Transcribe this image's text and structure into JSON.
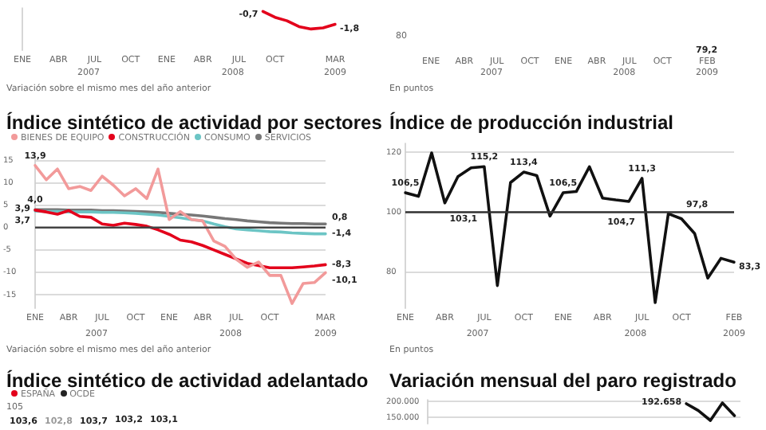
{
  "chart_data": [
    {
      "type": "line",
      "categories": [
        "ENE",
        null,
        null,
        "ABR",
        null,
        null,
        "JUL",
        null,
        null,
        "OCT",
        null,
        null,
        "ENE",
        null,
        null,
        "ABR",
        null,
        null,
        "JUL",
        null,
        null,
        "OCT",
        null,
        null,
        null,
        null,
        "MAR"
      ],
      "series": [
        {
          "color": "#e3001b",
          "values": [
            null,
            null,
            null,
            null,
            null,
            null,
            null,
            null,
            null,
            null,
            null,
            null,
            null,
            null,
            null,
            null,
            null,
            null,
            null,
            null,
            -0.7,
            -1.2,
            -1.5,
            -2.0,
            -2.2,
            -2.1,
            -1.8
          ],
          "value_labels": [
            null,
            null,
            null,
            null,
            null,
            null,
            null,
            null,
            null,
            null,
            null,
            null,
            null,
            null,
            null,
            null,
            null,
            null,
            null,
            null,
            "-0,7",
            null,
            null,
            null,
            null,
            null,
            "-1,8"
          ]
        }
      ],
      "ylim": [
        -4,
        -0.4
      ],
      "tick_labels": "x",
      "annotations": [
        "2007",
        "2008",
        "2009",
        "Variación sobre el mismo mes del año anterior"
      ]
    },
    {
      "type": "other",
      "categories": [
        "ENE",
        null,
        null,
        "ABR",
        null,
        null,
        "JUL",
        null,
        null,
        "OCT",
        null,
        null,
        "ENE",
        null,
        null,
        "ABR",
        null,
        null,
        "JUL",
        null,
        null,
        "OCT",
        null,
        null,
        null,
        "FEB"
      ],
      "annotations": [
        "2007",
        "2008",
        "2009",
        "En puntos",
        "80",
        "79,2"
      ]
    },
    {
      "type": "line",
      "title": "Índice sintético de actividad por sectores",
      "categories": [
        "ENE",
        null,
        null,
        "ABR",
        null,
        null,
        "JUL",
        null,
        null,
        "OCT",
        null,
        null,
        "ENE",
        null,
        null,
        "ABR",
        null,
        null,
        "JUL",
        null,
        null,
        "OCT",
        null,
        null,
        null,
        null,
        "MAR"
      ],
      "series": [
        {
          "name": "BIENES DE EQUIPO",
          "color": "#f29a9a",
          "values": [
            13.9,
            10.7,
            13.1,
            8.7,
            9.2,
            8.3,
            11.5,
            9.5,
            7.1,
            8.7,
            6.5,
            13.1,
            1.8,
            3.6,
            1.8,
            1.5,
            -3.0,
            -4.2,
            -7.1,
            -8.9,
            -7.7,
            -10.7,
            -10.7,
            -17.0,
            -12.5,
            -12.3,
            -10.1
          ],
          "value_labels": [
            "13,9",
            null,
            null,
            null,
            null,
            null,
            null,
            null,
            null,
            null,
            null,
            null,
            null,
            null,
            null,
            null,
            null,
            null,
            null,
            null,
            null,
            null,
            null,
            null,
            null,
            null,
            "-10,1"
          ]
        },
        {
          "name": "CONSTRUCCIÓN",
          "color": "#e3001b",
          "values": [
            3.9,
            3.5,
            3.0,
            3.8,
            2.5,
            2.3,
            0.8,
            0.5,
            1.0,
            0.7,
            0.3,
            -0.5,
            -1.5,
            -2.8,
            -3.2,
            -4.0,
            -5.0,
            -6.0,
            -7.0,
            -8.0,
            -8.5,
            -9.0,
            -9.0,
            -9.0,
            -8.8,
            -8.6,
            -8.3
          ],
          "value_labels": [
            "3,9",
            null,
            null,
            null,
            null,
            null,
            null,
            null,
            null,
            null,
            null,
            null,
            null,
            null,
            null,
            null,
            null,
            null,
            null,
            null,
            null,
            null,
            null,
            null,
            null,
            null,
            "-8,3"
          ]
        },
        {
          "name": "CONSUMO",
          "color": "#6cc5c5",
          "values": [
            3.7,
            3.6,
            3.6,
            3.5,
            3.5,
            3.5,
            3.4,
            3.4,
            3.3,
            3.2,
            3.0,
            2.8,
            2.5,
            2.2,
            1.8,
            1.5,
            0.8,
            0.2,
            -0.3,
            -0.5,
            -0.7,
            -0.9,
            -1.0,
            -1.2,
            -1.3,
            -1.4,
            -1.4
          ],
          "value_labels": [
            "3,7",
            null,
            null,
            null,
            null,
            null,
            null,
            null,
            null,
            null,
            null,
            null,
            null,
            null,
            null,
            null,
            null,
            null,
            null,
            null,
            null,
            null,
            null,
            null,
            null,
            null,
            "-1,4"
          ]
        },
        {
          "name": "SERVICIOS",
          "color": "#777777",
          "values": [
            4.0,
            4.0,
            4.0,
            3.9,
            3.9,
            3.9,
            3.8,
            3.8,
            3.7,
            3.6,
            3.5,
            3.4,
            3.2,
            3.0,
            2.8,
            2.6,
            2.3,
            2.0,
            1.8,
            1.5,
            1.3,
            1.1,
            1.0,
            0.9,
            0.9,
            0.8,
            0.8
          ],
          "value_labels": [
            "4,0",
            null,
            null,
            null,
            null,
            null,
            null,
            null,
            null,
            null,
            null,
            null,
            null,
            null,
            null,
            null,
            null,
            null,
            null,
            null,
            null,
            null,
            null,
            null,
            null,
            null,
            "0,8"
          ]
        }
      ],
      "ylim": [
        -18,
        16
      ],
      "yticks": [
        15,
        10,
        5,
        0,
        -5,
        -10,
        -15
      ],
      "grid": "y",
      "legend": "top left",
      "ref_lines": [
        {
          "axis": "y",
          "value": 0,
          "color": "#444444"
        }
      ],
      "annotations": [
        "2007",
        "2008",
        "2009",
        "Variación sobre el mismo mes del año anterior"
      ]
    },
    {
      "type": "line",
      "title": "Índice de producción industrial",
      "categories": [
        "ENE",
        null,
        null,
        "ABR",
        null,
        null,
        "JUL",
        null,
        null,
        "OCT",
        null,
        null,
        "ENE",
        null,
        null,
        "ABR",
        null,
        null,
        "JUL",
        null,
        null,
        "OCT",
        null,
        null,
        null,
        "FEB"
      ],
      "series": [
        {
          "color": "#111111",
          "values": [
            106.5,
            105.3,
            119.8,
            103.1,
            111.9,
            114.8,
            115.2,
            75.5,
            109.9,
            113.4,
            112.2,
            98.7,
            106.5,
            106.9,
            115.2,
            104.7,
            104.1,
            103.6,
            111.3,
            69.8,
            99.5,
            97.8,
            92.9,
            78.0,
            84.6,
            83.3
          ],
          "value_labels": [
            "106,5",
            null,
            null,
            "103,1",
            null,
            null,
            "115,2",
            null,
            null,
            "113,4",
            null,
            null,
            "106,5",
            null,
            null,
            "104,7",
            null,
            null,
            "111,3",
            null,
            null,
            "97,8",
            null,
            null,
            null,
            "83,3"
          ]
        }
      ],
      "ylim": [
        68,
        123
      ],
      "yticks": [
        80,
        100,
        120
      ],
      "grid": "y",
      "ref_lines": [
        {
          "axis": "y",
          "value": 100,
          "color": "#333333"
        }
      ],
      "annotations": [
        "2007",
        "2008",
        "2009",
        "En puntos"
      ]
    },
    {
      "type": "other",
      "title": "Índice sintético de actividad adelantado",
      "series": [
        {
          "name": "ESPAÑA",
          "color": "#e3001b"
        },
        {
          "name": "OCDE",
          "color": "#222222"
        }
      ],
      "legend": "top left",
      "annotations": [
        "105",
        "103,6",
        "102,8",
        "103,7",
        "103,2",
        "103,1"
      ]
    },
    {
      "type": "line",
      "title": "Variación mensual del paro registrado",
      "categories": [
        null,
        null,
        null,
        null,
        null,
        null,
        null,
        null,
        null,
        null,
        null,
        null,
        null,
        null,
        null,
        null,
        null,
        null,
        null,
        null,
        null,
        null,
        null,
        null,
        null,
        null
      ],
      "series": [
        {
          "color": "#111111",
          "values": [
            null,
            null,
            null,
            null,
            null,
            null,
            null,
            null,
            null,
            null,
            null,
            null,
            null,
            null,
            null,
            null,
            null,
            null,
            null,
            null,
            null,
            192658,
            171000,
            140000,
            195000,
            155000
          ],
          "value_labels": [
            null,
            null,
            null,
            null,
            null,
            null,
            null,
            null,
            null,
            null,
            null,
            null,
            null,
            null,
            null,
            null,
            null,
            null,
            null,
            null,
            null,
            "192.658",
            null,
            null,
            null,
            null
          ]
        }
      ],
      "ylim": [
        130000,
        205000
      ],
      "yticks": [
        {
          "value": 200000,
          "label": "200.000"
        },
        {
          "value": 150000,
          "label": "150.000"
        }
      ],
      "grid": "y",
      "tick_labels": "y"
    }
  ]
}
